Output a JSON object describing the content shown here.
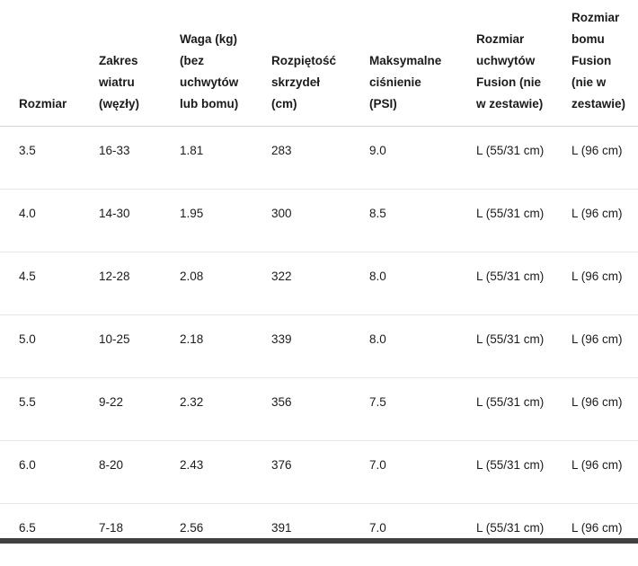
{
  "table": {
    "columns": [
      {
        "id": "rozmiar",
        "label": "Rozmiar"
      },
      {
        "id": "zakres-wiatru",
        "label": "Zakres wiatru (węzły)"
      },
      {
        "id": "waga",
        "label": "Waga (kg) (bez uchwytów lub bomu)"
      },
      {
        "id": "rozpietosc",
        "label": "Rozpiętość skrzydeł (cm)"
      },
      {
        "id": "cisnienie",
        "label": "Maksymalne ciśnienie (PSI)"
      },
      {
        "id": "rozmiar-uchwytow",
        "label": "Rozmiar uchwytów Fusion (nie w zestawie)"
      },
      {
        "id": "rozmiar-bomu",
        "label": "Rozmiar bomu Fusion (nie w zestawie)"
      }
    ],
    "rows": [
      [
        "3.5",
        "16-33",
        "1.81",
        "283",
        "9.0",
        "L (55/31 cm)",
        "L (96 cm)"
      ],
      [
        "4.0",
        "14-30",
        "1.95",
        "300",
        "8.5",
        "L (55/31 cm)",
        "L (96 cm)"
      ],
      [
        "4.5",
        "12-28",
        "2.08",
        "322",
        "8.0",
        "L (55/31 cm)",
        "L (96 cm)"
      ],
      [
        "5.0",
        "10-25",
        "2.18",
        "339",
        "8.0",
        "L (55/31 cm)",
        "L (96 cm)"
      ],
      [
        "5.5",
        "9-22",
        "2.32",
        "356",
        "7.5",
        "L (55/31 cm)",
        "L (96 cm)"
      ],
      [
        "6.0",
        "8-20",
        "2.43",
        "376",
        "7.0",
        "L (55/31 cm)",
        "L (96 cm)"
      ],
      [
        "6.5",
        "7-18",
        "2.56",
        "391",
        "7.0",
        "L (55/31 cm)",
        "L (96 cm)"
      ]
    ]
  }
}
